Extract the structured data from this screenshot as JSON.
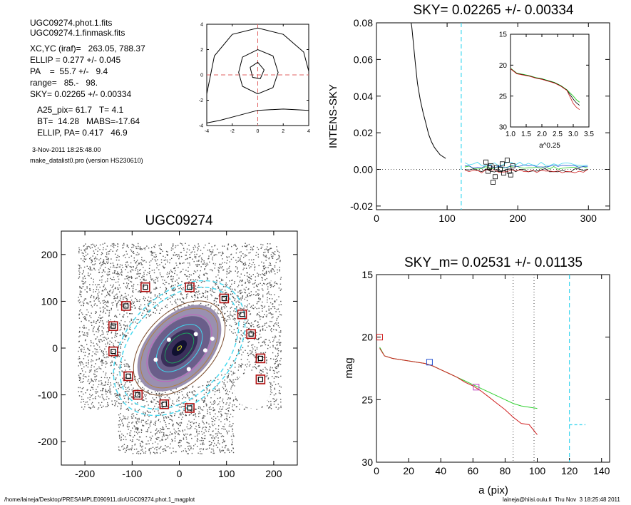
{
  "info": {
    "file1": "UGC09274.phot.1.fits",
    "file2": "UGC09274.1.finmask.fits",
    "xcyc": "XC,YC (iraf)=   263.05, 788.37",
    "ellip": "ELLIP = 0.277 +/- 0.045",
    "pa": "PA    =  55.7 +/-   9.4",
    "range": "range=   85.-   98.",
    "sky": "SKY= 0.02265 +/- 0.00334",
    "a25": "A25_pix= 61.7   T= 4.1",
    "bt": "BT=  14.28   MABS=-17.64",
    "ellip_pa": "ELLIP, PA= 0.417   46.9",
    "date": "3-Nov-2011 18:25:48.00",
    "program": "make_datalist0.pro (version HS230610)"
  },
  "footer": {
    "path": "/home/laineja/Desktop/PRESAMPLE090911.dir/UGC09274.phot.1_magplot",
    "user": "laineja@hiisi.oulu.fi  Thu Nov  3 18:25:48 2011"
  },
  "colors": {
    "axis": "#000000",
    "dash_red": "#e06060",
    "cyan": "#40d8f0",
    "green": "#30d030",
    "red": "#d02020",
    "blue": "#2050d0",
    "magenta": "#c040c0",
    "square_red": "#b01010"
  },
  "chart_data": [
    {
      "id": "centering",
      "type": "contour",
      "xlim": [
        -4,
        4
      ],
      "ylim": [
        -4,
        4
      ],
      "xticks": [
        "-4",
        "-2",
        "0",
        "2",
        "4"
      ],
      "yticks": [
        "-4",
        "-2",
        "0",
        "2",
        "4"
      ]
    },
    {
      "id": "sky",
      "type": "line",
      "title": "SKY= 0.02265 +/- 0.00334",
      "ylabel": "INTENS-SKY",
      "xlim": [
        0,
        330
      ],
      "ylim": [
        -0.022,
        0.08
      ],
      "xticks": [
        "0",
        "100",
        "200",
        "300"
      ],
      "yticks": [
        "-0.02",
        "0.00",
        "0.02",
        "0.04",
        "0.06",
        "0.08"
      ],
      "sky_line": 0.0,
      "vline_x": 120,
      "profile": {
        "x": [
          49,
          50,
          52,
          55,
          58,
          62,
          66,
          70,
          74,
          78,
          82,
          86,
          90,
          94,
          98
        ],
        "y": [
          0.08,
          0.078,
          0.07,
          0.058,
          0.047,
          0.038,
          0.031,
          0.025,
          0.019,
          0.015,
          0.012,
          0.01,
          0.008,
          0.007,
          0.006
        ]
      },
      "sky_points": {
        "x": [
          155,
          158,
          162,
          165,
          170,
          175,
          180,
          185,
          190,
          193,
          160,
          168,
          178,
          188
        ],
        "y": [
          0.004,
          -0.001,
          0.002,
          -0.007,
          0.001,
          0.0,
          -0.002,
          0.005,
          -0.003,
          0.002,
          0.001,
          -0.004,
          0.003,
          -0.001
        ]
      },
      "inset": {
        "xlabel": "a^0.25",
        "xlim": [
          1.0,
          3.5
        ],
        "ylim": [
          30,
          15
        ],
        "xticks": [
          "1.0",
          "1.5",
          "2.0",
          "2.5",
          "3.0",
          "3.5"
        ],
        "yticks": [
          "15",
          "20",
          "25",
          "30"
        ]
      }
    },
    {
      "id": "image",
      "type": "image",
      "title": "UGC09274",
      "xlim": [
        -250,
        250
      ],
      "ylim": [
        -250,
        250
      ],
      "xticks": [
        "-200",
        "-100",
        "0",
        "100",
        "200"
      ],
      "yticks": [
        "-200",
        "-100",
        "0",
        "100",
        "200"
      ],
      "sky_boxes": [
        [
          -72,
          130
        ],
        [
          22,
          130
        ],
        [
          95,
          106
        ],
        [
          133,
          72
        ],
        [
          152,
          30
        ],
        [
          172,
          -22
        ],
        [
          172,
          -67
        ],
        [
          -113,
          90
        ],
        [
          -140,
          47
        ],
        [
          -140,
          -7
        ],
        [
          -108,
          -60
        ],
        [
          -88,
          -100
        ],
        [
          -32,
          -120
        ],
        [
          22,
          -128
        ]
      ]
    },
    {
      "id": "profile",
      "type": "line",
      "title": "SKY_m=  0.02531 +/- 0.01135",
      "xlabel": "a (pix)",
      "ylabel": "mag",
      "xlim": [
        0,
        145
      ],
      "ylim": [
        30,
        15
      ],
      "xticks": [
        "0",
        "20",
        "40",
        "60",
        "80",
        "100",
        "120",
        "140"
      ],
      "yticks": [
        "15",
        "20",
        "25",
        "30"
      ],
      "vlines_dotted": [
        85,
        98
      ],
      "vline_dashed": 120,
      "sky_level": 27.0,
      "series": [
        {
          "color": "green",
          "x": [
            2,
            5,
            10,
            15,
            20,
            25,
            30,
            35,
            40,
            45,
            50,
            55,
            60,
            65,
            70,
            75,
            80,
            85,
            90,
            95,
            100
          ],
          "y": [
            20.8,
            21.5,
            21.7,
            21.8,
            21.9,
            22.0,
            22.1,
            22.3,
            22.6,
            22.9,
            23.2,
            23.5,
            23.8,
            24.1,
            24.4,
            24.7,
            25.0,
            25.3,
            25.5,
            25.6,
            25.7
          ]
        },
        {
          "color": "black",
          "x": [
            2,
            5,
            10,
            15,
            20,
            25,
            30,
            35,
            40,
            45,
            50,
            55,
            60,
            65,
            70,
            75,
            80,
            85,
            90,
            95,
            100
          ],
          "y": [
            20.9,
            21.5,
            21.7,
            21.8,
            21.9,
            22.0,
            22.1,
            22.3,
            22.6,
            22.9,
            23.2,
            23.5,
            23.8,
            24.1,
            24.5,
            24.9,
            25.3,
            25.7,
            26.0,
            26.1,
            26.5
          ]
        },
        {
          "color": "red",
          "x": [
            2,
            5,
            10,
            15,
            20,
            25,
            30,
            35,
            40,
            45,
            50,
            55,
            60,
            65,
            70,
            75,
            80,
            85,
            90,
            95,
            100
          ],
          "y": [
            20.9,
            21.5,
            21.7,
            21.8,
            21.9,
            22.0,
            22.1,
            22.3,
            22.6,
            22.9,
            23.2,
            23.6,
            23.9,
            24.3,
            24.8,
            25.3,
            25.8,
            26.4,
            26.9,
            27.0,
            27.8
          ]
        }
      ],
      "markers": [
        [
          2,
          20.0,
          "red"
        ],
        [
          33,
          22.0,
          "blue"
        ],
        [
          62,
          24.0,
          "magenta"
        ]
      ]
    }
  ]
}
